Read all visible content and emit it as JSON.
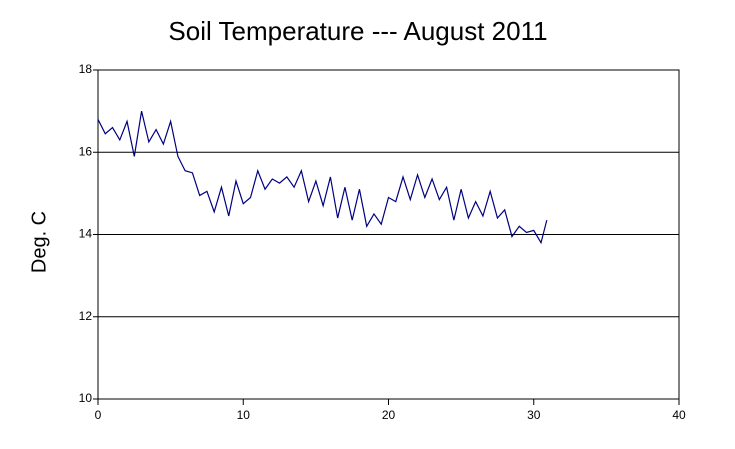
{
  "chart_data": {
    "type": "line",
    "title": "Soil Temperature --- August 2011",
    "y_label": "Deg. C",
    "x": [
      0,
      0.5,
      1,
      1.5,
      2,
      2.5,
      3,
      3.5,
      4,
      4.5,
      5,
      5.5,
      6,
      6.5,
      7,
      7.5,
      8,
      8.5,
      9,
      9.5,
      10,
      10.5,
      11,
      11.5,
      12,
      12.5,
      13,
      13.5,
      14,
      14.5,
      15,
      15.5,
      16,
      16.5,
      17,
      17.5,
      18,
      18.5,
      19,
      19.5,
      20,
      20.5,
      21,
      21.5,
      22,
      22.5,
      23,
      23.5,
      24,
      24.5,
      25,
      25.5,
      26,
      26.5,
      27,
      27.5,
      28,
      28.5,
      29,
      29.5,
      30,
      30.5,
      30.9
    ],
    "series": [
      {
        "color": "#000080",
        "values": [
          16.8,
          16.45,
          16.6,
          16.3,
          16.75,
          15.9,
          17.0,
          16.25,
          16.55,
          16.2,
          16.75,
          15.9,
          15.55,
          15.5,
          14.95,
          15.05,
          14.55,
          15.15,
          14.45,
          15.3,
          14.75,
          14.9,
          15.55,
          15.1,
          15.35,
          15.25,
          15.4,
          15.15,
          15.55,
          14.8,
          15.3,
          14.7,
          15.4,
          14.4,
          15.15,
          14.35,
          15.1,
          14.2,
          14.5,
          14.25,
          14.9,
          14.8,
          15.4,
          14.85,
          15.45,
          14.9,
          15.35,
          14.85,
          15.15,
          14.35,
          15.1,
          14.4,
          14.8,
          14.45,
          15.05,
          14.4,
          14.6,
          13.95,
          14.2,
          14.05,
          14.1,
          13.8,
          14.35
        ]
      }
    ],
    "xlim": [
      0,
      40
    ],
    "xticks": [
      0,
      10,
      20,
      30,
      40
    ],
    "ylim": [
      10,
      18
    ],
    "yticks": [
      10,
      12,
      14,
      16,
      18
    ],
    "grid": true
  }
}
